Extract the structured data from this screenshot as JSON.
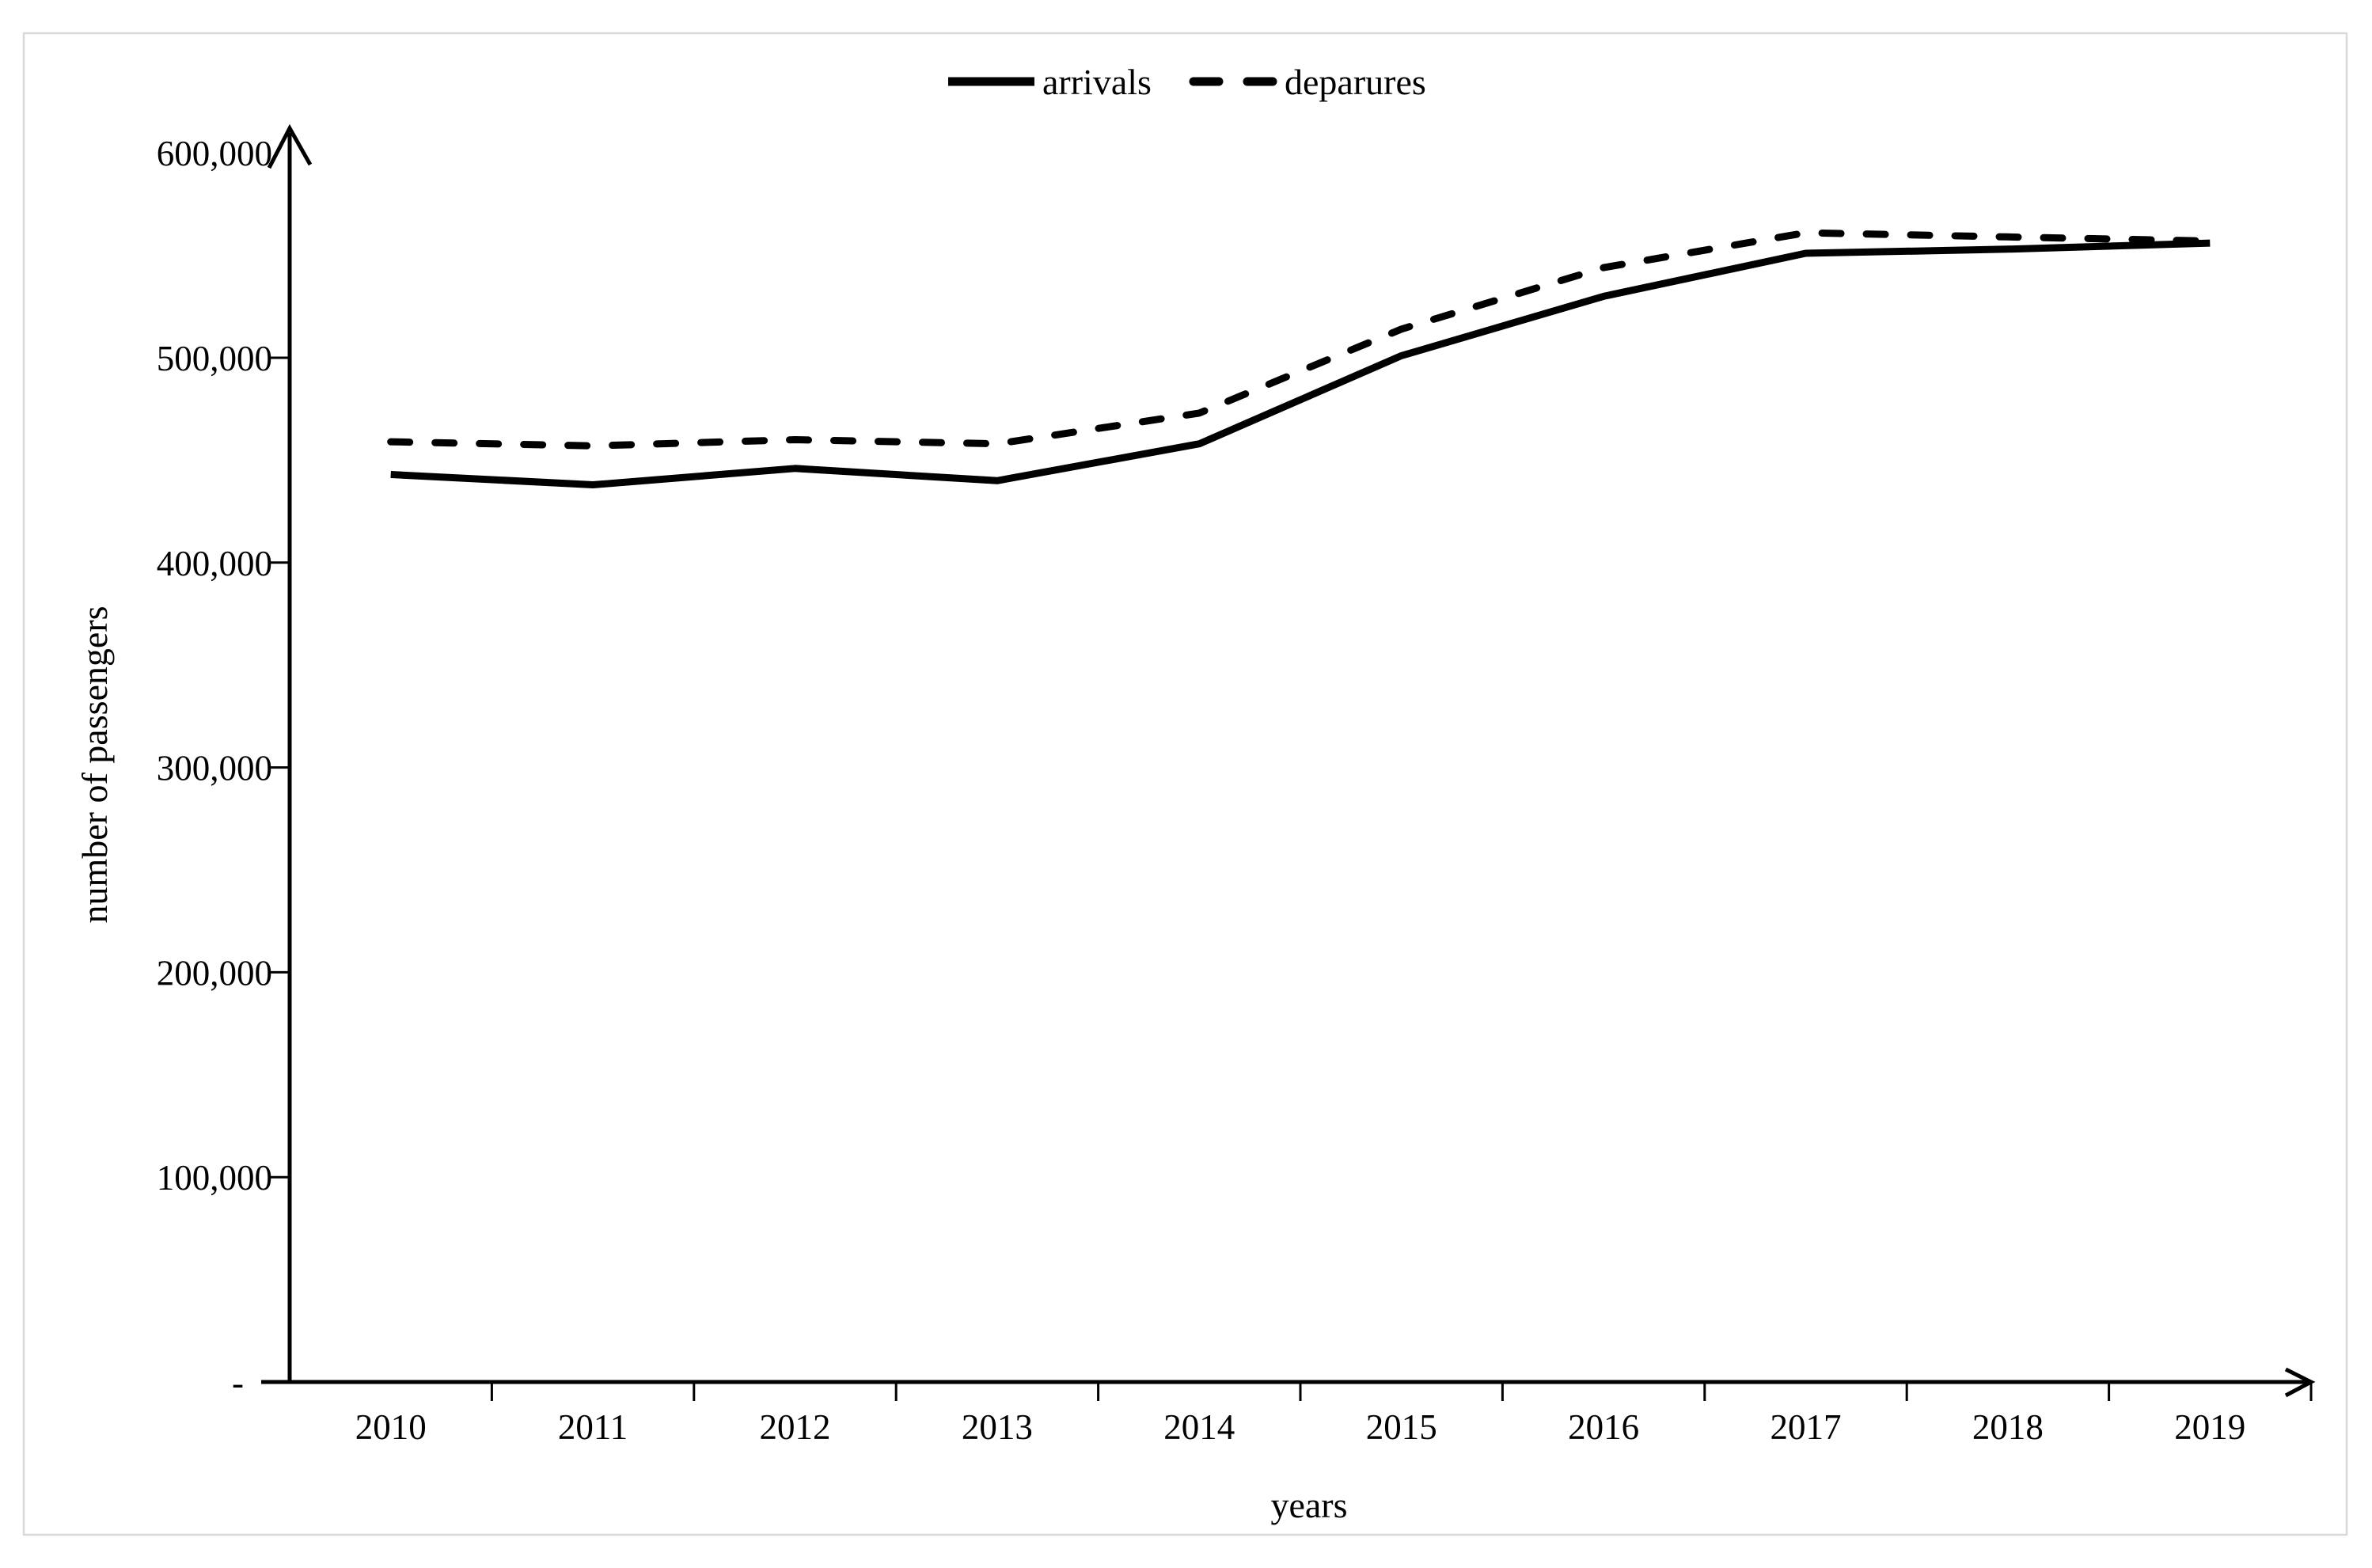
{
  "page": {
    "background": "#ffffff",
    "frame_color": "#d9d9d9",
    "line_color": "#000000",
    "text_color": "#000000"
  },
  "legend": {
    "position": "top-center",
    "items": [
      {
        "label": "arrivals",
        "style": "solid"
      },
      {
        "label": "deparures",
        "style": "dashed"
      }
    ]
  },
  "chart_data": {
    "type": "line",
    "title": "",
    "xlabel": "years",
    "ylabel": "number of passengers",
    "x": [
      "2010",
      "2011",
      "2012",
      "2013",
      "2014",
      "2015",
      "2016",
      "2017",
      "2018",
      "2019"
    ],
    "series": [
      {
        "name": "arrivals",
        "style": "solid",
        "color": "#000000",
        "values": [
          443000,
          438000,
          446000,
          440000,
          458000,
          501000,
          530000,
          551000,
          553000,
          556000
        ]
      },
      {
        "name": "deparures",
        "style": "dashed",
        "color": "#000000",
        "values": [
          459000,
          457000,
          460000,
          458000,
          473000,
          514000,
          544000,
          561000,
          559000,
          557000
        ]
      }
    ],
    "ylim": [
      0,
      600000
    ],
    "ytick_step": 100000,
    "y_ticks": [
      {
        "value": 600000,
        "label": "600,000"
      },
      {
        "value": 500000,
        "label": "500,000"
      },
      {
        "value": 400000,
        "label": "400,000"
      },
      {
        "value": 300000,
        "label": "300,000"
      },
      {
        "value": 200000,
        "label": "200,000"
      },
      {
        "value": 100000,
        "label": "100,000"
      },
      {
        "value": 0,
        "label": "-"
      }
    ],
    "grid": false,
    "legend_position": "top-center",
    "axis_arrows": true
  }
}
